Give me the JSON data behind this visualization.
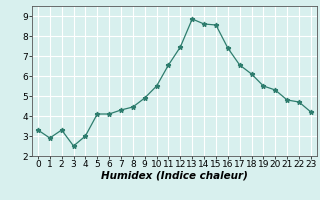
{
  "x": [
    0,
    1,
    2,
    3,
    4,
    5,
    6,
    7,
    8,
    9,
    10,
    11,
    12,
    13,
    14,
    15,
    16,
    17,
    18,
    19,
    20,
    21,
    22,
    23
  ],
  "y": [
    3.3,
    2.9,
    3.3,
    2.5,
    3.0,
    4.1,
    4.1,
    4.3,
    4.45,
    4.9,
    5.5,
    6.55,
    7.45,
    8.85,
    8.6,
    8.55,
    7.4,
    6.55,
    6.1,
    5.5,
    5.3,
    4.8,
    4.7,
    4.2
  ],
  "line_color": "#2e7d6e",
  "marker": "*",
  "marker_size": 3.5,
  "background_color": "#d8f0ee",
  "grid_color": "#ffffff",
  "xlabel": "Humidex (Indice chaleur)",
  "xlabel_fontsize": 7.5,
  "tick_fontsize": 6.5,
  "xlim": [
    -0.5,
    23.5
  ],
  "ylim": [
    2.0,
    9.5
  ],
  "yticks": [
    2,
    3,
    4,
    5,
    6,
    7,
    8,
    9
  ],
  "xticks": [
    0,
    1,
    2,
    3,
    4,
    5,
    6,
    7,
    8,
    9,
    10,
    11,
    12,
    13,
    14,
    15,
    16,
    17,
    18,
    19,
    20,
    21,
    22,
    23
  ]
}
